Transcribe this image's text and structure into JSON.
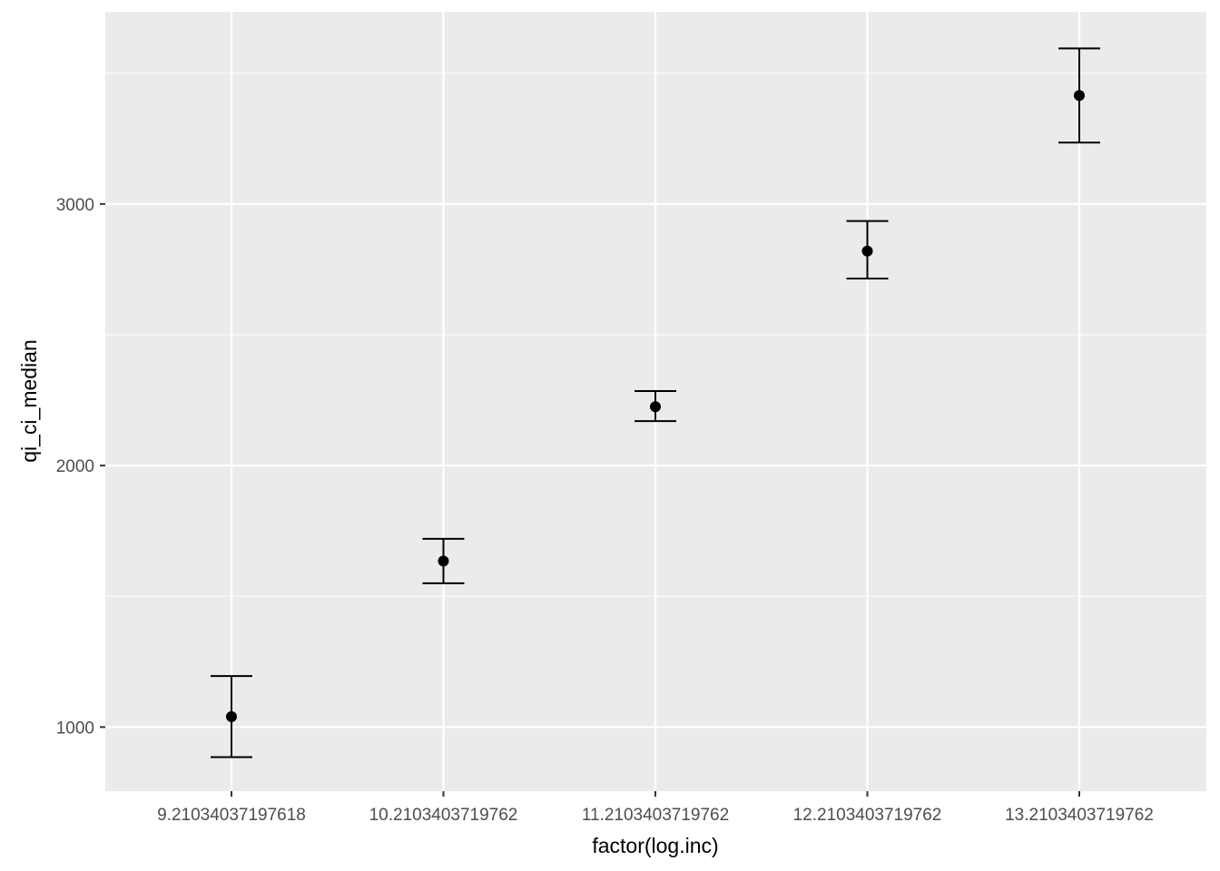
{
  "chart_data": {
    "type": "scatter",
    "title": "",
    "xlabel": "factor(log.inc)",
    "ylabel": "qi_ci_median",
    "categories": [
      "9.21034037197618",
      "10.2103403719762",
      "11.2103403719762",
      "12.2103403719762",
      "13.2103403719762"
    ],
    "series": [
      {
        "values": [
          1040,
          1635,
          2225,
          2820,
          3415
        ],
        "lower": [
          885,
          1550,
          2170,
          2715,
          3235
        ],
        "upper": [
          1195,
          1720,
          2285,
          2935,
          3595
        ]
      }
    ],
    "ylim": [
      755,
      3735
    ],
    "yticks": [
      1000,
      2000,
      3000
    ],
    "grid": true,
    "panel_background": "#EBEBEB",
    "grid_color": "#FFFFFF",
    "point_color": "#000000"
  }
}
